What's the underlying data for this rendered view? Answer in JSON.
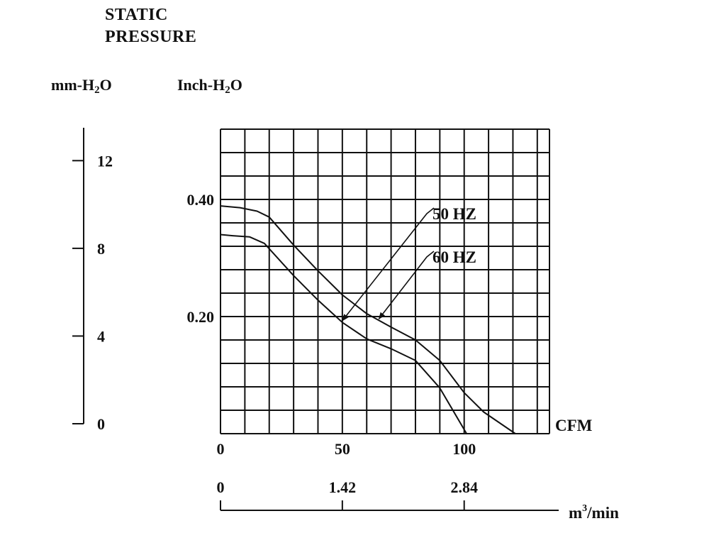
{
  "chart_data": {
    "type": "line",
    "title_line1": "STATIC",
    "title_line2": "PRESSURE",
    "y_left": {
      "label_main": "mm-H",
      "label_sub": "2",
      "label_tail": "O",
      "ticks": [
        0,
        4,
        8,
        12
      ],
      "range": [
        0,
        13.5
      ]
    },
    "y_right": {
      "label_main": "Inch-H",
      "label_sub": "2",
      "label_tail": "O",
      "ticks": [
        {
          "value": 0.2,
          "label": "0.20"
        },
        {
          "value": 0.4,
          "label": "0.40"
        }
      ],
      "range": [
        0,
        0.52
      ]
    },
    "x_main": {
      "label": "CFM",
      "ticks": [
        0,
        50,
        100
      ],
      "range": [
        0,
        135
      ]
    },
    "x_secondary": {
      "label_main": "m",
      "label_sup": "3",
      "label_tail": "/min",
      "ticks": [
        {
          "cfm": 0,
          "label": "0"
        },
        {
          "cfm": 50,
          "label": "1.42"
        },
        {
          "cfm": 100,
          "label": "2.84"
        }
      ]
    },
    "grid": {
      "on": true,
      "x_step": 10,
      "y_step": 0.04
    },
    "series": [
      {
        "name": "50 HZ",
        "x": [
          0,
          5,
          12,
          18,
          30,
          40,
          50,
          60,
          70,
          80,
          90,
          101
        ],
        "y": [
          0.34,
          0.338,
          0.336,
          0.325,
          0.27,
          0.228,
          0.19,
          0.162,
          0.145,
          0.125,
          0.078,
          0.0
        ]
      },
      {
        "name": "60 HZ",
        "x": [
          0,
          8,
          15,
          20,
          30,
          40,
          50,
          60,
          70,
          80,
          90,
          100,
          108,
          121
        ],
        "y": [
          0.389,
          0.386,
          0.38,
          0.37,
          0.322,
          0.278,
          0.237,
          0.205,
          0.182,
          0.16,
          0.125,
          0.07,
          0.037,
          0.0
        ]
      }
    ],
    "annotations": [
      {
        "text": "50 HZ",
        "series": "50 HZ",
        "arrow_to": [
          50,
          0.193
        ]
      },
      {
        "text": "60 HZ",
        "series": "60 HZ",
        "arrow_to": [
          65,
          0.196
        ]
      }
    ]
  }
}
